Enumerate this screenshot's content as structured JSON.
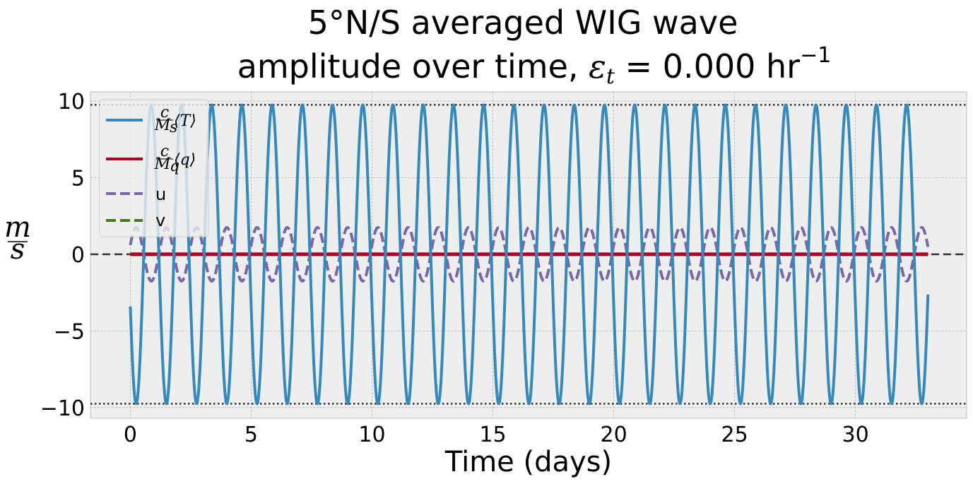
{
  "chart_data": {
    "type": "line",
    "title_line1": "5°N/S averaged WIG wave",
    "title_line2_prefix": "amplitude over time, ",
    "title_line2_symbol": "ε",
    "title_line2_subscript": "t",
    "title_line2_value": " = 0.000 hr",
    "title_line2_exponent": "−1",
    "xlabel": "Time (days)",
    "ylabel_numerator": "m",
    "ylabel_denominator": "s",
    "xlim": [
      -1.65,
      34.6
    ],
    "ylim": [
      -10.7,
      10.6
    ],
    "xticks": [
      0,
      5,
      10,
      15,
      20,
      25,
      30
    ],
    "xtick_labels": [
      "0",
      "5",
      "10",
      "15",
      "20",
      "25",
      "30"
    ],
    "yticks": [
      10,
      5,
      0,
      -5,
      -10
    ],
    "ytick_labels": [
      "10",
      "5",
      "0",
      "−5",
      "−10"
    ],
    "grid": true,
    "legend_position": "top-left",
    "reference_lines": [
      {
        "y": 9.75,
        "style": "dotted",
        "color": "#333333"
      },
      {
        "y": -9.75,
        "style": "dotted",
        "color": "#333333"
      },
      {
        "y": 0,
        "style": "dashed",
        "color": "#333333"
      }
    ],
    "series": [
      {
        "name": "c/M_s ⟨T⟩",
        "kind": "sine",
        "amplitude": 9.75,
        "period_days": 1.25,
        "phase_value_at_0": -3.4,
        "phase_rising": false,
        "x_start": 0,
        "x_end": 33,
        "color": "#348ABD",
        "style": "solid"
      },
      {
        "name": "c/M_q ⟨q⟩",
        "kind": "constant",
        "value": 0,
        "x_start": 0,
        "x_end": 33,
        "color": "#A60628",
        "style": "solid"
      },
      {
        "name": "u",
        "kind": "sine",
        "amplitude": 1.75,
        "period_days": 1.25,
        "phase_value_at_0": 0.6,
        "phase_rising": true,
        "x_start": 0,
        "x_end": 33,
        "color": "#7A68A6",
        "style": "dashed"
      },
      {
        "name": "v",
        "kind": "constant",
        "value": 0,
        "x_start": 0,
        "x_end": 33,
        "color": "#467821",
        "style": "dashed"
      }
    ],
    "legend": [
      {
        "label_main": "c",
        "label_sub": "M",
        "label_sub_index": "s",
        "label_bracket": "⟨T⟩",
        "color": "#348ABD",
        "style": "solid"
      },
      {
        "label_main": "c",
        "label_sub": "M",
        "label_sub_index": "q",
        "label_bracket": "⟨q⟩",
        "color": "#A60628",
        "style": "solid"
      },
      {
        "label_plain": "u",
        "color": "#7A68A6",
        "style": "dashed"
      },
      {
        "label_plain": "v",
        "color": "#467821",
        "style": "dashed"
      }
    ]
  }
}
